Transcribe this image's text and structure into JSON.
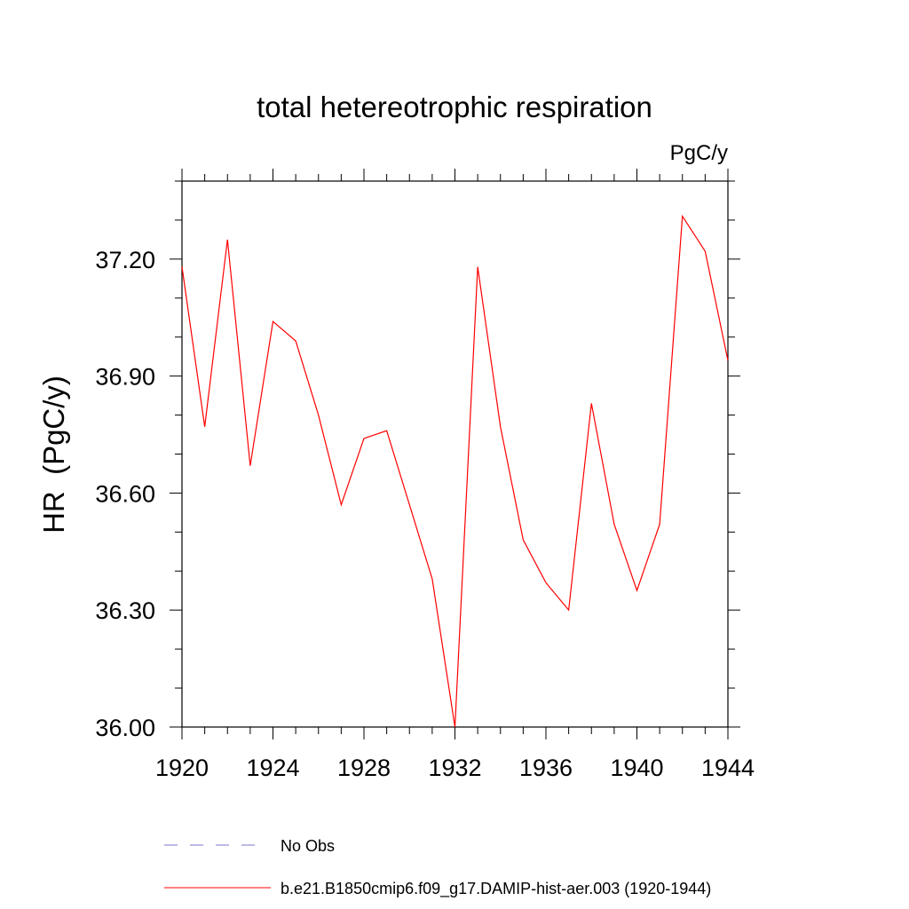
{
  "chart_data": {
    "type": "line",
    "title": "total hetereotrophic respiration",
    "units_label": "PgC/y",
    "ylabel": "HR  (PgC/y)",
    "xlabel": "",
    "xlim": [
      1920,
      1944
    ],
    "ylim": [
      36.0,
      37.4
    ],
    "xticks": [
      1920,
      1924,
      1928,
      1932,
      1936,
      1940,
      1944
    ],
    "xtick_labels": [
      "1920",
      "1924",
      "1928",
      "1932",
      "1936",
      "1940",
      "1944"
    ],
    "yticks": [
      36.0,
      36.3,
      36.6,
      36.9,
      37.2
    ],
    "ytick_labels": [
      "36.00",
      "36.30",
      "36.60",
      "36.90",
      "37.20"
    ],
    "x_minor_step": 1,
    "y_minor_step": 0.1,
    "grid": false,
    "legend_position": "bottom",
    "series": [
      {
        "name": "b.e21.B1850cmip6.f09_g17.DAMIP-hist-aer.003 (1920-1944)",
        "color": "#ff0000",
        "style": "solid",
        "x": [
          1920,
          1921,
          1922,
          1923,
          1924,
          1925,
          1926,
          1927,
          1928,
          1929,
          1930,
          1931,
          1932,
          1933,
          1934,
          1935,
          1936,
          1937,
          1938,
          1939,
          1940,
          1941,
          1942,
          1943,
          1944
        ],
        "values": [
          37.18,
          36.77,
          37.25,
          36.67,
          37.04,
          36.99,
          36.8,
          36.57,
          36.74,
          36.76,
          36.57,
          36.38,
          36.0,
          37.18,
          36.77,
          36.48,
          36.37,
          36.3,
          36.83,
          36.52,
          36.35,
          36.52,
          37.31,
          37.22,
          36.94
        ]
      }
    ],
    "legend": [
      {
        "label": "No Obs",
        "color": "#7777cc",
        "style": "dashed"
      },
      {
        "label": "b.e21.B1850cmip6.f09_g17.DAMIP-hist-aer.003 (1920-1944)",
        "color": "#ff0000",
        "style": "solid"
      }
    ]
  }
}
